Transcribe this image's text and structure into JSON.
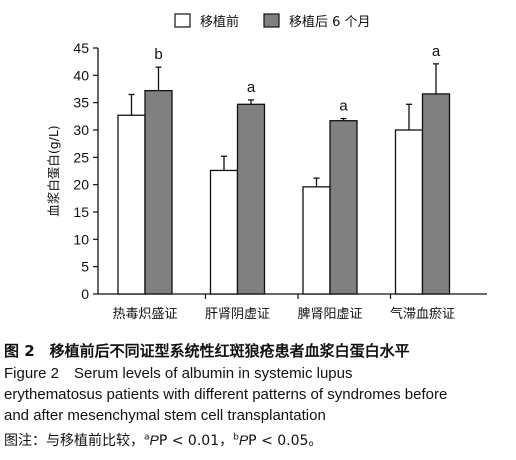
{
  "chart_data": {
    "type": "bar",
    "categories": [
      "热毒炽盛证",
      "肝肾阴虚证",
      "脾肾阳虚证",
      "气滞血瘀证"
    ],
    "series": [
      {
        "name": "移植前",
        "color": "#ffffff",
        "values": [
          32.7,
          22.6,
          19.6,
          30.0
        ],
        "errors": [
          3.8,
          2.6,
          1.6,
          4.7
        ],
        "marks": [
          "",
          "",
          "",
          ""
        ]
      },
      {
        "name": "移植后 6 个月",
        "color": "#808080",
        "values": [
          37.2,
          34.7,
          31.7,
          36.6
        ],
        "errors": [
          4.3,
          0.8,
          0.4,
          5.5
        ],
        "marks": [
          "b",
          "a",
          "a",
          "a"
        ]
      }
    ],
    "ylabel": "血浆白蛋白(g/L)",
    "ylim": [
      0,
      45
    ],
    "yticks": [
      0,
      5,
      10,
      15,
      20,
      25,
      30,
      35,
      40,
      45
    ],
    "legend_position": "top",
    "grid": false
  },
  "caption": {
    "title": "图 2　移植前后不同证型系统性红斑狼疮患者血浆白蛋白水平",
    "en_line1": "Figure 2　Serum levels of albumin in systemic lupus",
    "en_line2": "erythematosus patients with different patterns of syndromes before",
    "en_line3": "and after mesenchymal stem cell transplantation",
    "note_prefix": "图注：与移植前比较，",
    "note_a_mark": "a",
    "note_a_text": "P < 0.01，",
    "note_b_mark": "b",
    "note_b_text": "P < 0.05。"
  }
}
